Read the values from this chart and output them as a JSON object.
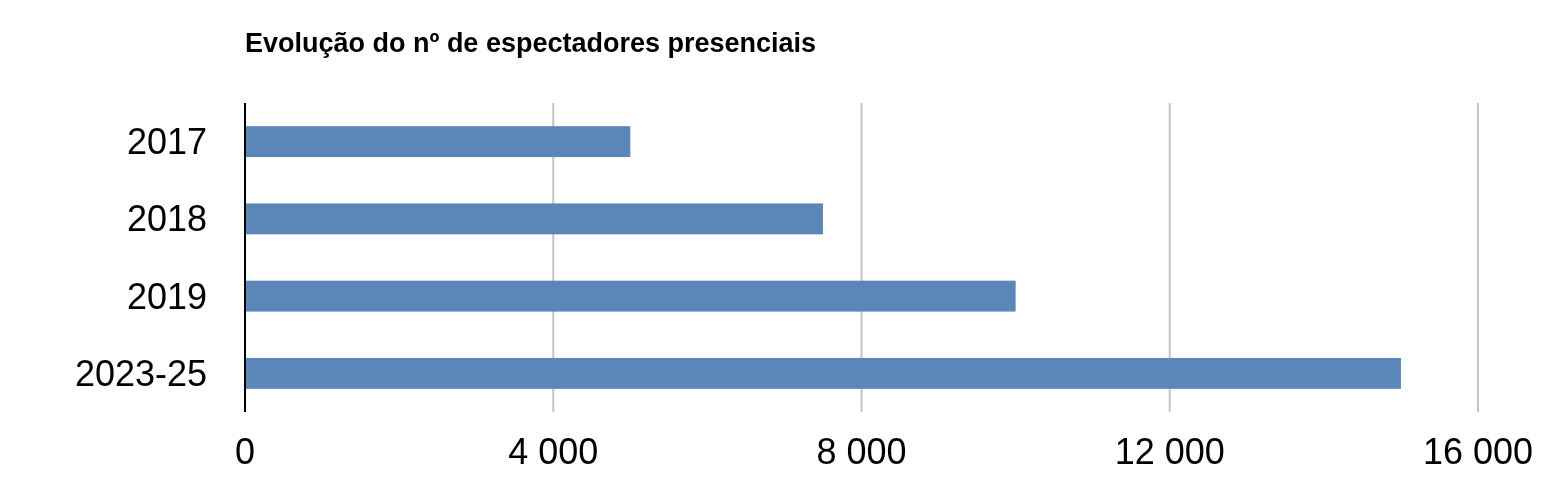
{
  "chart_data": {
    "type": "bar",
    "orientation": "horizontal",
    "title": "Evolução do nº de espectadores presenciais",
    "categories": [
      "2017",
      "2018",
      "2019",
      "2023-25"
    ],
    "values": [
      5000,
      7500,
      10000,
      15000
    ],
    "color": "#5b86b8",
    "xlim": [
      0,
      16000
    ],
    "xticks": [
      {
        "value": 0,
        "label": "0"
      },
      {
        "value": 4000,
        "label": "4 000"
      },
      {
        "value": 8000,
        "label": "8 000"
      },
      {
        "value": 12000,
        "label": "12 000"
      },
      {
        "value": 16000,
        "label": "16 000"
      }
    ],
    "grid": "x"
  }
}
